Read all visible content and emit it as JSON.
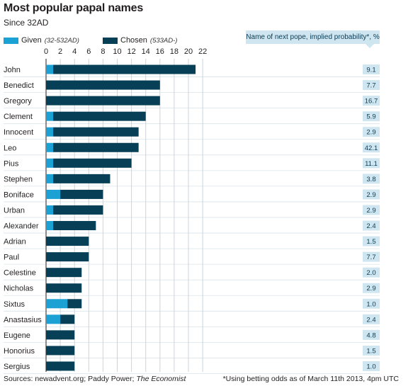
{
  "chart_data": {
    "type": "bar",
    "orientation": "horizontal",
    "stacked": true,
    "title": "Most popular papal names",
    "subtitle": "Since 32AD",
    "categories": [
      "John",
      "Benedict",
      "Gregory",
      "Clement",
      "Innocent",
      "Leo",
      "Pius",
      "Stephen",
      "Boniface",
      "Urban",
      "Alexander",
      "Adrian",
      "Paul",
      "Celestine",
      "Nicholas",
      "Sixtus",
      "Anastasius",
      "Eugene",
      "Honorius",
      "Sergius"
    ],
    "series": [
      {
        "name": "Given",
        "range_note": "(32-532AD)",
        "color": "#1ba1d4",
        "values": [
          1,
          0,
          0,
          1,
          1,
          1,
          1,
          1,
          2,
          1,
          1,
          0,
          0,
          0,
          0,
          3,
          2,
          0,
          0,
          0
        ]
      },
      {
        "name": "Chosen",
        "range_note": "(533AD-)",
        "color": "#063f56",
        "values": [
          20,
          16,
          16,
          13,
          12,
          12,
          11,
          8,
          6,
          7,
          6,
          6,
          6,
          5,
          5,
          2,
          2,
          4,
          4,
          4
        ]
      }
    ],
    "x_ticks": [
      0,
      2,
      4,
      6,
      8,
      10,
      12,
      14,
      16,
      18,
      20,
      22
    ],
    "xlim": [
      0,
      22
    ],
    "grid": true,
    "legend_position": "top-left",
    "probability": {
      "header": "Name of next pope, implied probability*, %",
      "values": [
        "9.1",
        "7.7",
        "16.7",
        "5.9",
        "2.9",
        "42.1",
        "11.1",
        "3.8",
        "2.9",
        "2.9",
        "2.4",
        "1.5",
        "7.7",
        "2.0",
        "2.9",
        "1.0",
        "2.4",
        "4.8",
        "1.5",
        "1.0"
      ]
    }
  },
  "footer": {
    "sources_prefix": "Sources: newadvent.org; Paddy Power; ",
    "sources_italic": "The Economist",
    "footnote": "*Using betting odds as of March 11th 2013, 4pm UTC"
  }
}
